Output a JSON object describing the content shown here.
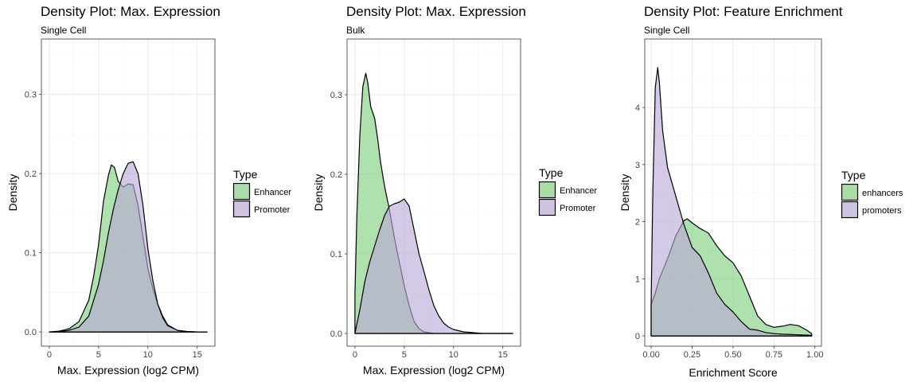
{
  "colors": {
    "enhancer": "#7ccf7c",
    "promoter": "#b9a8d6",
    "outline": "#000000"
  },
  "chart_data": [
    {
      "type": "area",
      "title": "Density Plot: Max. Expression",
      "subtitle": "Single Cell",
      "xlabel": "Max. Expression (log2 CPM)",
      "ylabel": "Density",
      "xlim": [
        -0.8,
        16.8
      ],
      "ylim": [
        -0.018,
        0.37
      ],
      "xticks": [
        0,
        5,
        10,
        15
      ],
      "xtick_labels": [
        "0",
        "5",
        "10",
        "15"
      ],
      "yticks": [
        0,
        0.1,
        0.2,
        0.3
      ],
      "ytick_labels": [
        "0.0",
        "0.1",
        "0.2",
        "0.3"
      ],
      "grid": true,
      "legend": {
        "title": "Type",
        "position": "right",
        "labels": [
          "Enhancer",
          "Promoter"
        ]
      },
      "series": [
        {
          "name": "Enhancer",
          "color": "enhancer",
          "x": [
            0,
            1,
            2,
            3,
            4,
            4.5,
            5,
            5.5,
            6,
            6.3,
            6.6,
            7,
            7.5,
            8,
            8.5,
            9,
            9.5,
            10,
            10.5,
            11,
            11.5,
            12,
            13,
            14,
            15,
            16
          ],
          "y": [
            0,
            0.001,
            0.004,
            0.013,
            0.04,
            0.07,
            0.11,
            0.165,
            0.198,
            0.211,
            0.208,
            0.19,
            0.183,
            0.187,
            0.186,
            0.16,
            0.12,
            0.08,
            0.055,
            0.035,
            0.02,
            0.009,
            0.002,
            0.0005,
            0,
            0
          ]
        },
        {
          "name": "Promoter",
          "color": "promoter",
          "x": [
            0,
            1,
            2,
            3,
            4,
            5,
            5.5,
            6,
            6.5,
            7,
            7.5,
            8,
            8.5,
            9,
            9.5,
            10,
            10.5,
            11,
            11.5,
            12,
            13,
            14,
            15,
            16
          ],
          "y": [
            0,
            0.0005,
            0.002,
            0.006,
            0.02,
            0.06,
            0.09,
            0.125,
            0.155,
            0.18,
            0.2,
            0.213,
            0.215,
            0.2,
            0.16,
            0.105,
            0.065,
            0.035,
            0.018,
            0.008,
            0.002,
            0.0005,
            0,
            0
          ]
        }
      ]
    },
    {
      "type": "area",
      "title": "Density Plot: Max. Expression",
      "subtitle": "Bulk",
      "xlabel": "Max. Expression (log2 CPM)",
      "ylabel": "Density",
      "xlim": [
        -0.8,
        16.8
      ],
      "ylim": [
        -0.016,
        0.37
      ],
      "xticks": [
        0,
        5,
        10,
        15
      ],
      "xtick_labels": [
        "0",
        "5",
        "10",
        "15"
      ],
      "yticks": [
        0,
        0.1,
        0.2,
        0.3
      ],
      "ytick_labels": [
        "0.0",
        "0.1",
        "0.2",
        "0.3"
      ],
      "grid": true,
      "legend": {
        "title": "Type",
        "position": "right",
        "labels": [
          "Enhancer",
          "Promoter"
        ]
      },
      "series": [
        {
          "name": "Enhancer",
          "color": "enhancer",
          "x": [
            0,
            0.2,
            0.5,
            0.8,
            1.1,
            1.3,
            1.6,
            2,
            2.3,
            2.6,
            3,
            3.5,
            4,
            4.5,
            5,
            5.5,
            6,
            6.5,
            7,
            7.5,
            8,
            9,
            10,
            16
          ],
          "y": [
            0.05,
            0.15,
            0.25,
            0.31,
            0.327,
            0.315,
            0.285,
            0.27,
            0.245,
            0.215,
            0.185,
            0.155,
            0.12,
            0.09,
            0.06,
            0.035,
            0.015,
            0.006,
            0.002,
            0.001,
            0,
            0,
            0,
            0
          ]
        },
        {
          "name": "Promoter",
          "color": "promoter",
          "x": [
            0,
            0.5,
            1,
            1.5,
            2,
            2.5,
            3,
            3.5,
            4,
            4.5,
            5,
            5.5,
            6,
            6.5,
            7,
            7.5,
            8,
            8.5,
            9,
            9.5,
            10,
            11,
            12,
            13,
            16
          ],
          "y": [
            0,
            0.03,
            0.065,
            0.09,
            0.11,
            0.13,
            0.148,
            0.16,
            0.163,
            0.165,
            0.169,
            0.16,
            0.13,
            0.1,
            0.078,
            0.055,
            0.035,
            0.022,
            0.013,
            0.008,
            0.005,
            0.002,
            0.001,
            0,
            0
          ]
        }
      ]
    },
    {
      "type": "area",
      "title": "Density Plot: Feature Enrichment",
      "subtitle": "Single Cell",
      "xlabel": "Enrichment Score",
      "ylabel": "Density",
      "xlim": [
        -0.039,
        1.04
      ],
      "ylim": [
        -0.18,
        5.2
      ],
      "xticks": [
        0,
        0.25,
        0.5,
        0.75,
        1
      ],
      "xtick_labels": [
        "0.00",
        "0.25",
        "0.50",
        "0.75",
        "1.00"
      ],
      "yticks": [
        0,
        1,
        2,
        3,
        4
      ],
      "ytick_labels": [
        "0",
        "1",
        "2",
        "3",
        "4"
      ],
      "grid": true,
      "legend": {
        "title": "Type",
        "position": "right",
        "labels": [
          "enhancers",
          "promoters"
        ]
      },
      "series": [
        {
          "name": "enhancers",
          "color": "enhancer",
          "x": [
            0,
            0.025,
            0.05,
            0.1,
            0.15,
            0.2,
            0.22,
            0.25,
            0.3,
            0.35,
            0.4,
            0.45,
            0.5,
            0.55,
            0.6,
            0.65,
            0.7,
            0.75,
            0.8,
            0.85,
            0.9,
            0.95,
            0.98
          ],
          "y": [
            0.55,
            0.75,
            1.0,
            1.35,
            1.75,
            2.02,
            2.05,
            1.98,
            1.88,
            1.8,
            1.58,
            1.4,
            1.28,
            1.05,
            0.7,
            0.35,
            0.2,
            0.15,
            0.17,
            0.2,
            0.18,
            0.1,
            0.04
          ]
        },
        {
          "name": "promoters",
          "color": "promoter",
          "x": [
            0,
            0.01,
            0.025,
            0.04,
            0.05,
            0.07,
            0.1,
            0.15,
            0.2,
            0.25,
            0.3,
            0.35,
            0.4,
            0.45,
            0.5,
            0.55,
            0.6,
            0.65,
            0.7,
            0.75,
            0.8,
            0.9,
            0.98
          ],
          "y": [
            0.55,
            2.5,
            4.35,
            4.7,
            4.45,
            3.6,
            2.95,
            2.45,
            1.95,
            1.55,
            1.4,
            1.1,
            0.75,
            0.55,
            0.42,
            0.25,
            0.12,
            0.1,
            0.06,
            0.04,
            0.03,
            0.02,
            0.01
          ]
        }
      ]
    }
  ]
}
